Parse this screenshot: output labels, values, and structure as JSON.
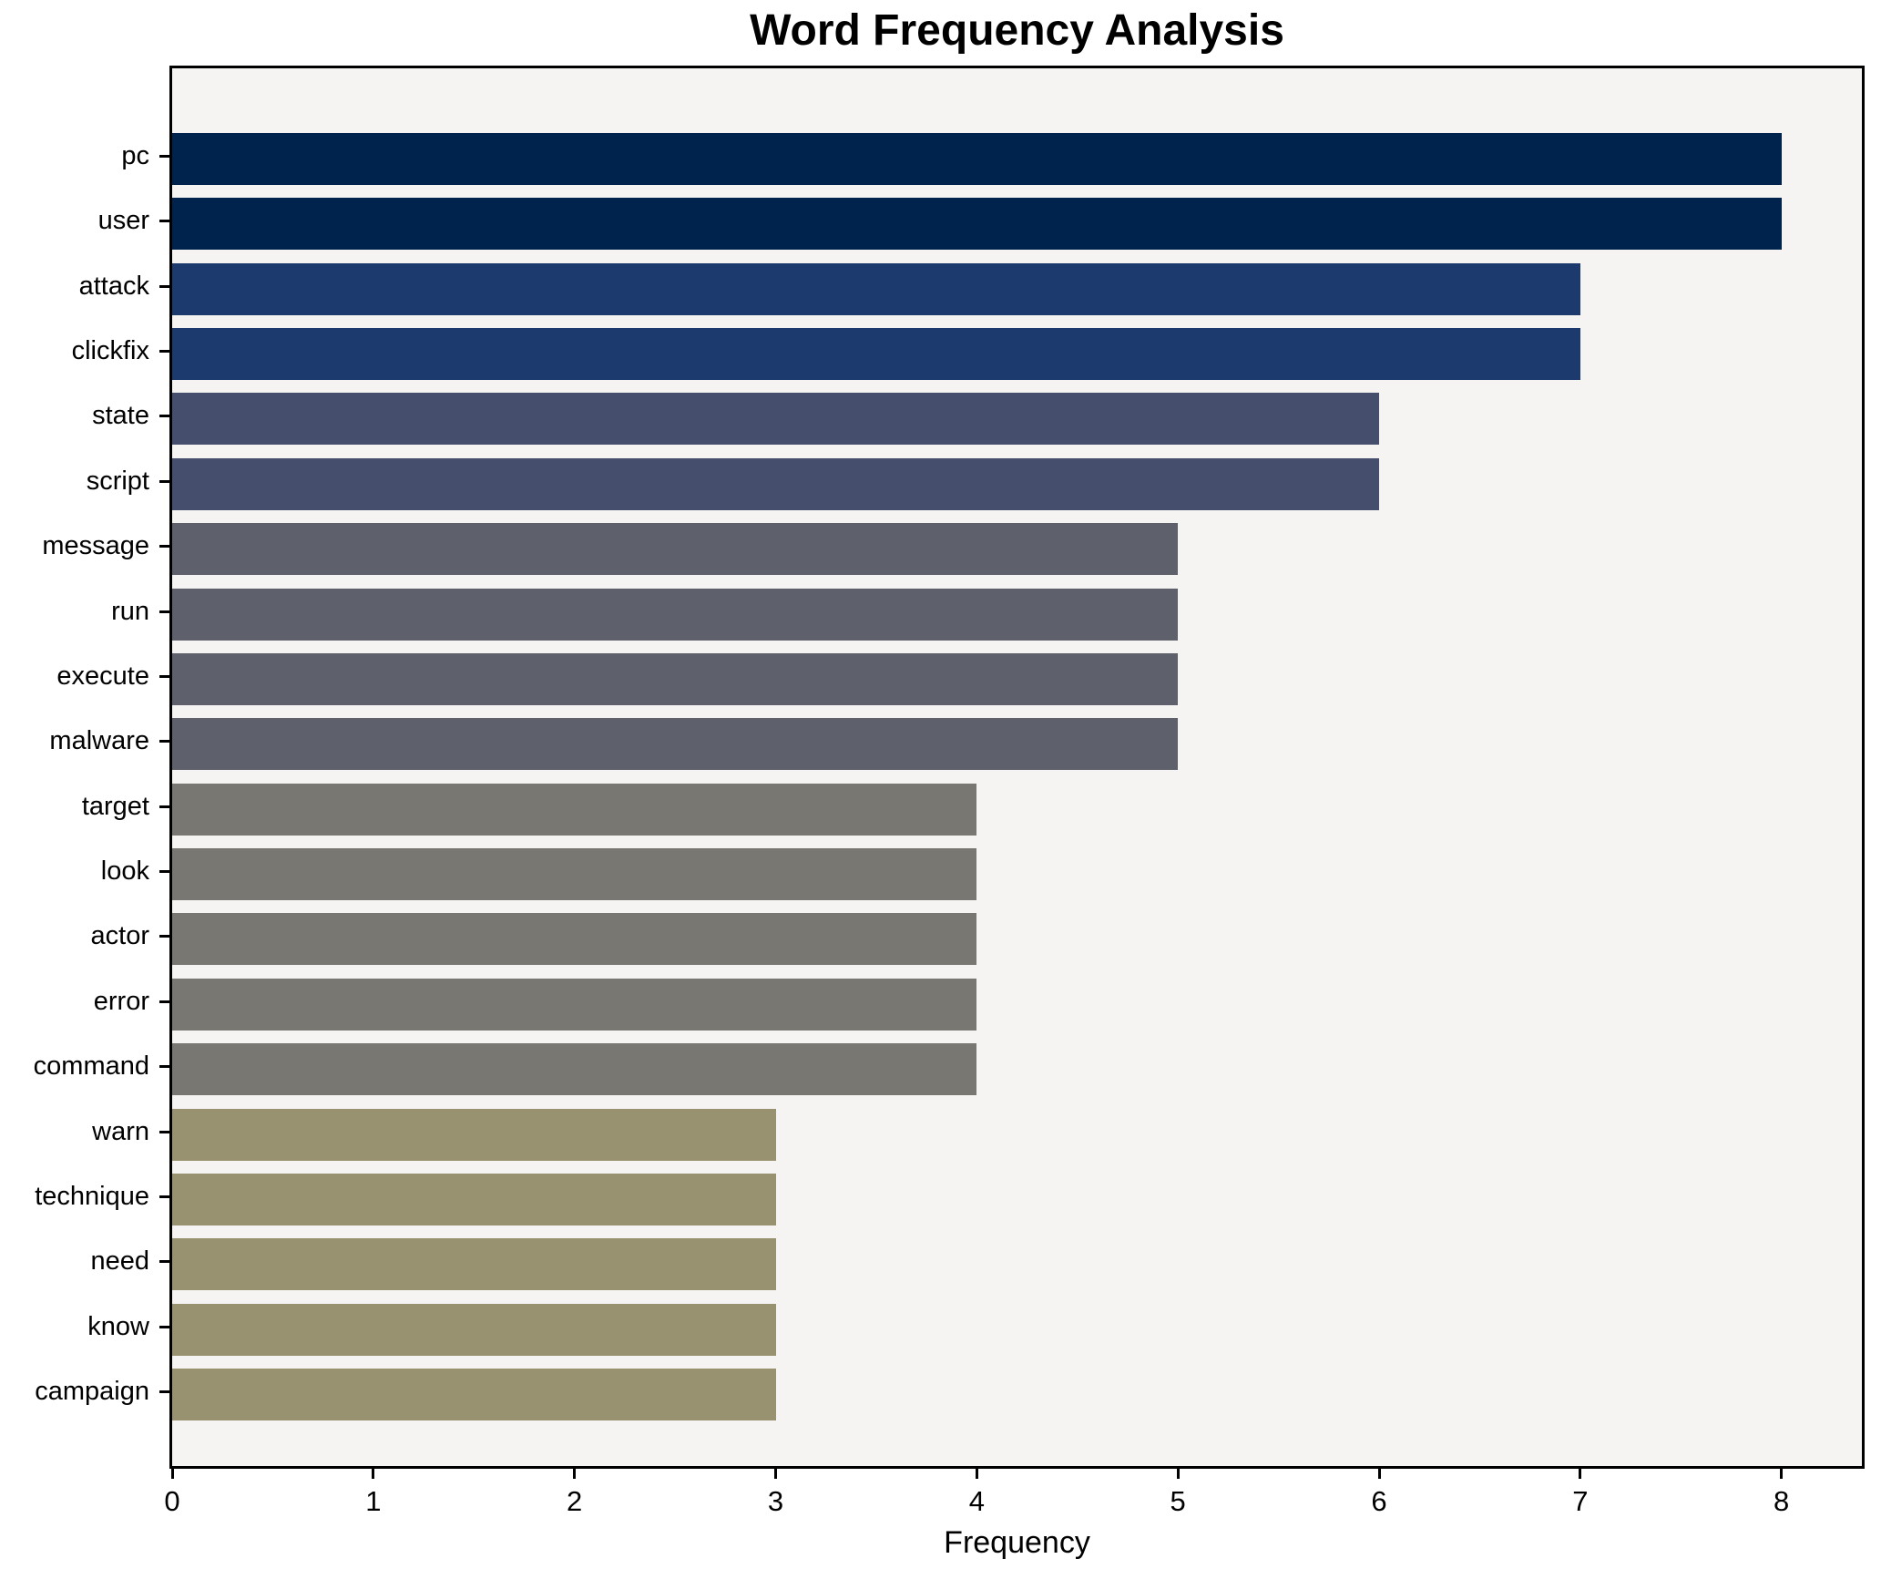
{
  "title": "Word Frequency Analysis",
  "xlabel": "Frequency",
  "chart_data": {
    "type": "bar",
    "orientation": "horizontal",
    "title": "Word Frequency Analysis",
    "xlabel": "Frequency",
    "ylabel": "",
    "categories": [
      "pc",
      "user",
      "attack",
      "clickfix",
      "state",
      "script",
      "message",
      "run",
      "execute",
      "malware",
      "target",
      "look",
      "actor",
      "error",
      "command",
      "warn",
      "technique",
      "need",
      "know",
      "campaign"
    ],
    "values": [
      8,
      8,
      7,
      7,
      6,
      6,
      5,
      5,
      5,
      5,
      4,
      4,
      4,
      4,
      4,
      3,
      3,
      3,
      3,
      3
    ],
    "bar_colors": [
      "#00234d",
      "#00234d",
      "#1c3a6d",
      "#1c3a6d",
      "#454f6d",
      "#454f6d",
      "#5e616c",
      "#5e616c",
      "#5e616c",
      "#5e616c",
      "#787771",
      "#787771",
      "#787771",
      "#787771",
      "#787771",
      "#999271",
      "#999271",
      "#999271",
      "#999271",
      "#999271"
    ],
    "xlim": [
      0,
      8.4
    ],
    "xticks": [
      0,
      1,
      2,
      3,
      4,
      5,
      6,
      7,
      8
    ],
    "grid": false,
    "legend": null,
    "plot_background": "#f5f4f2",
    "figure_background": "#ffffff",
    "spine_color": "#000000"
  }
}
